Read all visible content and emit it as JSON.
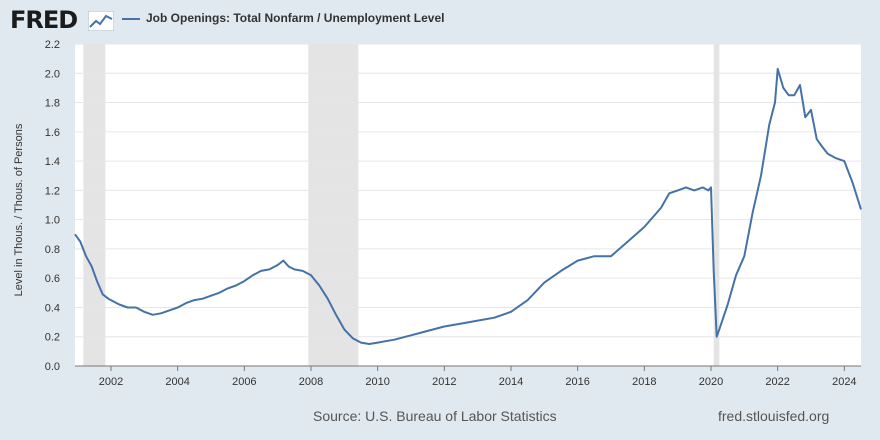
{
  "header": {
    "logo_text": "FRED",
    "legend_label": "Job Openings: Total Nonfarm / Unemployment Level",
    "series_color": "#4572a7"
  },
  "footer": {
    "source": "Source: U.S. Bureau of Labor Statistics",
    "site": "fred.stlouisfed.org"
  },
  "chart_data": {
    "type": "line",
    "title": "",
    "xlabel": "",
    "ylabel": "Level in Thous. / Thous. of Persons",
    "xlim": [
      2000.92,
      2024.5
    ],
    "ylim": [
      0,
      2.2
    ],
    "y_ticks": [
      0.0,
      0.2,
      0.4,
      0.6,
      0.8,
      1.0,
      1.2,
      1.4,
      1.6,
      1.8,
      2.0,
      2.2
    ],
    "y_tick_labels": [
      "0.0",
      "0.2",
      "0.4",
      "0.6",
      "0.8",
      "1.0",
      "1.2",
      "1.4",
      "1.6",
      "1.8",
      "2.0",
      "2.2"
    ],
    "x_ticks": [
      2002,
      2004,
      2006,
      2008,
      2010,
      2012,
      2014,
      2016,
      2018,
      2020,
      2022,
      2024
    ],
    "x_tick_labels": [
      "2002",
      "2004",
      "2006",
      "2008",
      "2010",
      "2012",
      "2014",
      "2016",
      "2018",
      "2020",
      "2022",
      "2024"
    ],
    "grid": "horizontal",
    "legend": "top-left",
    "recessions": [
      [
        2001.17,
        2001.83
      ],
      [
        2007.92,
        2009.42
      ],
      [
        2020.08,
        2020.25
      ]
    ],
    "series": [
      {
        "name": "Job Openings: Total Nonfarm / Unemployment Level",
        "x": [
          2000.92,
          2001.08,
          2001.25,
          2001.42,
          2001.58,
          2001.75,
          2001.92,
          2002.25,
          2002.5,
          2002.75,
          2003.0,
          2003.25,
          2003.5,
          2003.75,
          2004.0,
          2004.25,
          2004.5,
          2004.75,
          2005.0,
          2005.25,
          2005.5,
          2005.75,
          2006.0,
          2006.25,
          2006.5,
          2006.75,
          2007.0,
          2007.17,
          2007.33,
          2007.5,
          2007.75,
          2008.0,
          2008.25,
          2008.5,
          2008.75,
          2009.0,
          2009.25,
          2009.5,
          2009.75,
          2010.0,
          2010.5,
          2011.0,
          2011.5,
          2012.0,
          2012.5,
          2013.0,
          2013.5,
          2014.0,
          2014.5,
          2015.0,
          2015.5,
          2016.0,
          2016.5,
          2017.0,
          2017.5,
          2018.0,
          2018.5,
          2018.75,
          2019.0,
          2019.25,
          2019.5,
          2019.75,
          2019.92,
          2020.0,
          2020.08,
          2020.17,
          2020.25,
          2020.5,
          2020.75,
          2021.0,
          2021.25,
          2021.5,
          2021.75,
          2021.92,
          2022.0,
          2022.17,
          2022.33,
          2022.5,
          2022.67,
          2022.83,
          2023.0,
          2023.17,
          2023.33,
          2023.5,
          2023.75,
          2024.0,
          2024.25,
          2024.5
        ],
        "values": [
          0.9,
          0.85,
          0.75,
          0.68,
          0.58,
          0.49,
          0.46,
          0.42,
          0.4,
          0.4,
          0.37,
          0.35,
          0.36,
          0.38,
          0.4,
          0.43,
          0.45,
          0.46,
          0.48,
          0.5,
          0.53,
          0.55,
          0.58,
          0.62,
          0.65,
          0.66,
          0.69,
          0.72,
          0.68,
          0.66,
          0.65,
          0.62,
          0.55,
          0.46,
          0.35,
          0.25,
          0.19,
          0.16,
          0.15,
          0.16,
          0.18,
          0.21,
          0.24,
          0.27,
          0.29,
          0.31,
          0.33,
          0.37,
          0.45,
          0.57,
          0.65,
          0.72,
          0.75,
          0.75,
          0.85,
          0.95,
          1.08,
          1.18,
          1.2,
          1.22,
          1.2,
          1.22,
          1.2,
          1.22,
          0.65,
          0.2,
          0.25,
          0.42,
          0.62,
          0.75,
          1.05,
          1.3,
          1.65,
          1.8,
          2.03,
          1.9,
          1.85,
          1.85,
          1.92,
          1.7,
          1.75,
          1.55,
          1.5,
          1.45,
          1.42,
          1.4,
          1.25,
          1.07
        ]
      }
    ]
  }
}
